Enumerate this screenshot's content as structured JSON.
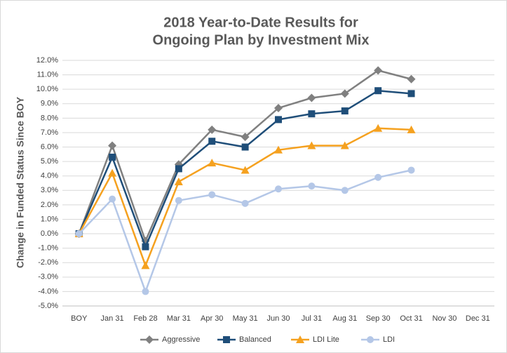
{
  "chart_data": {
    "type": "line",
    "title": [
      "2018 Year-to-Date Results for",
      "Ongoing Plan by Investment Mix"
    ],
    "y_label": "Change in Funded Status Since BOY",
    "categories": [
      "BOY",
      "Jan 31",
      "Feb 28",
      "Mar 31",
      "Apr 30",
      "May 31",
      "Jun 30",
      "Jul 31",
      "Aug 31",
      "Sep 30",
      "Oct 31",
      "Nov 30",
      "Dec 31"
    ],
    "series": [
      {
        "name": "Aggressive",
        "color": "#808080",
        "marker": "diamond",
        "values": [
          0,
          6.1,
          -0.5,
          4.8,
          7.2,
          6.7,
          8.7,
          9.4,
          9.7,
          11.3,
          10.7,
          null,
          null
        ]
      },
      {
        "name": "Balanced",
        "color": "#1f4e79",
        "marker": "square",
        "values": [
          0,
          5.3,
          -0.9,
          4.5,
          6.4,
          6.0,
          7.9,
          8.3,
          8.5,
          9.9,
          9.7,
          null,
          null
        ]
      },
      {
        "name": "LDI Lite",
        "color": "#f5a11f",
        "marker": "triangle",
        "values": [
          0,
          4.2,
          -2.2,
          3.6,
          4.9,
          4.4,
          5.8,
          6.1,
          6.1,
          7.3,
          7.2,
          null,
          null
        ]
      },
      {
        "name": "LDI",
        "color": "#b4c7e7",
        "marker": "circle",
        "values": [
          0,
          2.4,
          -4.0,
          2.3,
          2.7,
          2.1,
          3.1,
          3.3,
          3.0,
          3.9,
          4.4,
          null,
          null
        ]
      }
    ],
    "ylim": [
      -5,
      12
    ],
    "yticks": [
      {
        "value": -5,
        "label": "-5.0%"
      },
      {
        "value": -4,
        "label": "-4.0%"
      },
      {
        "value": -3,
        "label": "-3.0%"
      },
      {
        "value": -2,
        "label": "-2.0%"
      },
      {
        "value": -1,
        "label": "-1.0%"
      },
      {
        "value": 0,
        "label": "0.0%"
      },
      {
        "value": 1,
        "label": "1.0%"
      },
      {
        "value": 2,
        "label": "2.0%"
      },
      {
        "value": 3,
        "label": "3.0%"
      },
      {
        "value": 4,
        "label": "4.0%"
      },
      {
        "value": 5,
        "label": "5.0%"
      },
      {
        "value": 6,
        "label": "6.0%"
      },
      {
        "value": 7,
        "label": "7.0%"
      },
      {
        "value": 8,
        "label": "8.0%"
      },
      {
        "value": 9,
        "label": "9.0%"
      },
      {
        "value": 10,
        "label": "10.0%"
      },
      {
        "value": 11,
        "label": "11.0%"
      },
      {
        "value": 12,
        "label": "12.0%"
      }
    ],
    "grid": true,
    "legend": "bottom"
  }
}
